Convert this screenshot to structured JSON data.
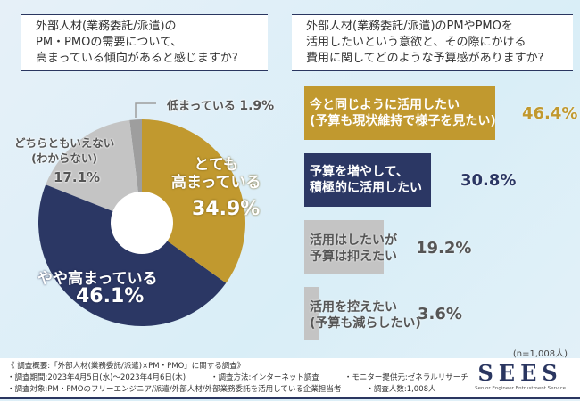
{
  "left_question": "外部人材(業務委託/派遣)の\nPM・PMOの需要について、\n高まっている傾向があると感じますか?",
  "right_question": "外部人材(業務委託/派遣)のPMやPMOを\n活用したいという意欲と、その際にかける\n費用に関してどのような予算感がありますか?",
  "chart_data": [
    {
      "type": "pie",
      "donut": true,
      "slices": [
        {
          "label": "とても\n高まっている",
          "value": 34.9,
          "display": "34.9%",
          "color": "#c1992f"
        },
        {
          "label": "やや高まっている",
          "value": 46.1,
          "display": "46.1%",
          "color": "#2b3764"
        },
        {
          "label": "どちらともいえない\n(わからない)",
          "value": 17.1,
          "display": "17.1%",
          "color": "#c4c4c4"
        },
        {
          "label": "低まっている",
          "value": 1.9,
          "display": "1.9%",
          "color": "#9e9e9e"
        }
      ]
    },
    {
      "type": "bar",
      "orientation": "horizontal",
      "xlim": [
        0,
        46.4
      ],
      "bars": [
        {
          "label": "今と同じように活用したい\n(予算も現状維持で様子を見たい)",
          "value": 46.4,
          "display": "46.4%",
          "color": "#c1992f"
        },
        {
          "label": "予算を増やして、\n積極的に活用したい",
          "value": 30.8,
          "display": "30.8%",
          "color": "#2b3764"
        },
        {
          "label": "活用はしたいが\n予算は抑えたい",
          "value": 19.2,
          "display": "19.2%",
          "color": "#c4c4c4"
        },
        {
          "label": "活用を控えたい\n(予算も減らしたい)",
          "value": 3.6,
          "display": "3.6%",
          "color": "#c4c4c4"
        }
      ]
    }
  ],
  "sample_note": "(n=1,008人)",
  "footer": {
    "line1": "《 調査概要:「外部人材(業務委託/派遣)×PM・PMO」に関する調査》",
    "period": "・調査期間:2023年4月5日(水)〜2023年4月6日(木)",
    "method": "・調査方法:インターネット調査",
    "provider": "・モニター提供元:ゼネラルリサーチ",
    "target": "・調査対象:PM・PMOのフリーエンジニア/派遣/外部人材/外部業務委託を活用している企業担当者",
    "count": "・調査人数:1,008人"
  },
  "logo": {
    "brand": "SEES",
    "tagline": "Senior Engineer Entrustment Service"
  }
}
